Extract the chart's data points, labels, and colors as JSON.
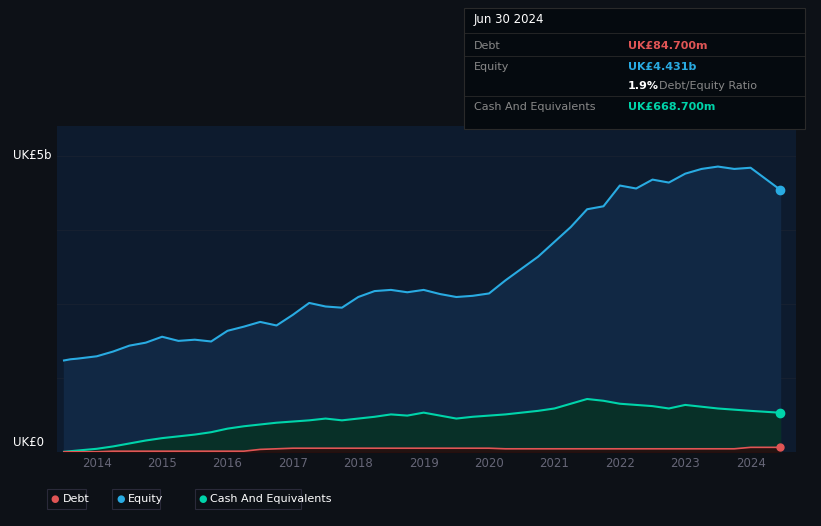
{
  "background_color": "#0d1117",
  "plot_bg_color": "#0d1b2e",
  "title_box": {
    "date": "Jun 30 2024",
    "debt_label": "Debt",
    "debt_value": "UK£84.700m",
    "equity_label": "Equity",
    "equity_value": "UK£4.431b",
    "ratio_text": "1.9% Debt/Equity Ratio",
    "cash_label": "Cash And Equivalents",
    "cash_value": "UK£668.700m",
    "debt_color": "#e05555",
    "equity_color": "#29abe2",
    "cash_color": "#00d4aa",
    "label_color": "#888888",
    "box_bg": "#050a0f",
    "box_border": "#2a2a2a"
  },
  "ylabel_top": "UK£5b",
  "ylabel_bottom": "UK£0",
  "xlabel_years": [
    "2014",
    "2015",
    "2016",
    "2017",
    "2018",
    "2019",
    "2020",
    "2021",
    "2022",
    "2023",
    "2024"
  ],
  "equity_x": [
    2013.5,
    2013.6,
    2013.7,
    2014.0,
    2014.25,
    2014.5,
    2014.75,
    2015.0,
    2015.25,
    2015.5,
    2015.75,
    2016.0,
    2016.25,
    2016.5,
    2016.75,
    2017.0,
    2017.25,
    2017.5,
    2017.75,
    2018.0,
    2018.25,
    2018.5,
    2018.75,
    2019.0,
    2019.25,
    2019.5,
    2019.75,
    2020.0,
    2020.25,
    2020.5,
    2020.75,
    2021.0,
    2021.25,
    2021.5,
    2021.75,
    2022.0,
    2022.25,
    2022.5,
    2022.75,
    2023.0,
    2023.25,
    2023.5,
    2023.75,
    2024.0,
    2024.45
  ],
  "equity_y": [
    1.55,
    1.57,
    1.58,
    1.62,
    1.7,
    1.8,
    1.85,
    1.95,
    1.88,
    1.9,
    1.87,
    2.05,
    2.12,
    2.2,
    2.14,
    2.32,
    2.52,
    2.46,
    2.44,
    2.62,
    2.72,
    2.74,
    2.7,
    2.74,
    2.67,
    2.62,
    2.64,
    2.68,
    2.9,
    3.1,
    3.3,
    3.55,
    3.8,
    4.1,
    4.15,
    4.5,
    4.45,
    4.6,
    4.55,
    4.7,
    4.78,
    4.82,
    4.78,
    4.8,
    4.431
  ],
  "cash_x": [
    2013.5,
    2013.6,
    2013.7,
    2014.0,
    2014.25,
    2014.5,
    2014.75,
    2015.0,
    2015.25,
    2015.5,
    2015.75,
    2016.0,
    2016.25,
    2016.5,
    2016.75,
    2017.0,
    2017.25,
    2017.5,
    2017.75,
    2018.0,
    2018.25,
    2018.5,
    2018.75,
    2019.0,
    2019.25,
    2019.5,
    2019.75,
    2020.0,
    2020.25,
    2020.5,
    2020.75,
    2021.0,
    2021.25,
    2021.5,
    2021.75,
    2022.0,
    2022.25,
    2022.5,
    2022.75,
    2023.0,
    2023.25,
    2023.5,
    2023.75,
    2024.0,
    2024.45
  ],
  "cash_y": [
    0.01,
    0.02,
    0.03,
    0.06,
    0.1,
    0.15,
    0.2,
    0.24,
    0.27,
    0.3,
    0.34,
    0.4,
    0.44,
    0.47,
    0.5,
    0.52,
    0.54,
    0.57,
    0.54,
    0.57,
    0.6,
    0.64,
    0.62,
    0.67,
    0.62,
    0.57,
    0.6,
    0.62,
    0.64,
    0.67,
    0.7,
    0.74,
    0.82,
    0.9,
    0.87,
    0.82,
    0.8,
    0.78,
    0.74,
    0.8,
    0.77,
    0.74,
    0.72,
    0.7,
    0.6687
  ],
  "debt_x": [
    2013.5,
    2013.6,
    2013.7,
    2014.0,
    2014.25,
    2014.5,
    2014.75,
    2015.0,
    2015.25,
    2015.5,
    2015.75,
    2016.0,
    2016.25,
    2016.5,
    2016.75,
    2017.0,
    2017.25,
    2017.5,
    2017.75,
    2018.0,
    2018.25,
    2018.5,
    2018.75,
    2019.0,
    2019.25,
    2019.5,
    2019.75,
    2020.0,
    2020.25,
    2020.5,
    2020.75,
    2021.0,
    2021.25,
    2021.5,
    2021.75,
    2022.0,
    2022.25,
    2022.5,
    2022.75,
    2023.0,
    2023.25,
    2023.5,
    2023.75,
    2024.0,
    2024.45
  ],
  "debt_y": [
    0.01,
    0.01,
    0.01,
    0.01,
    0.02,
    0.02,
    0.02,
    0.02,
    0.02,
    0.02,
    0.02,
    0.02,
    0.02,
    0.05,
    0.06,
    0.07,
    0.07,
    0.07,
    0.07,
    0.07,
    0.07,
    0.07,
    0.07,
    0.07,
    0.07,
    0.07,
    0.07,
    0.07,
    0.06,
    0.06,
    0.06,
    0.06,
    0.06,
    0.06,
    0.06,
    0.06,
    0.06,
    0.06,
    0.06,
    0.06,
    0.06,
    0.06,
    0.06,
    0.0847,
    0.0847
  ],
  "equity_color": "#29abe2",
  "equity_fill_color": "#112844",
  "cash_color": "#00d4aa",
  "cash_fill_color": "#083028",
  "debt_color": "#e05555",
  "debt_fill_color": "#2a0c0c",
  "grid_color": "#162030",
  "text_color": "#ffffff",
  "tick_color": "#666677",
  "legend_border": "#2a2a3a",
  "ylim": [
    0,
    5.5
  ],
  "xlim": [
    2013.4,
    2024.7
  ]
}
